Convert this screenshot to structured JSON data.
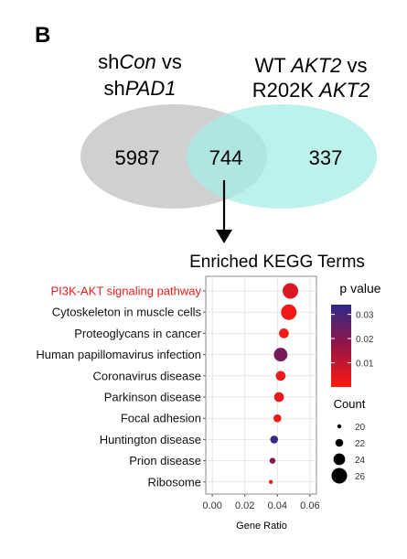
{
  "panel_label": "B",
  "venn": {
    "left_label_line1": {
      "prefix": "sh",
      "italic": "Con",
      "suffix": " vs"
    },
    "left_label_line2": {
      "prefix": "sh",
      "italic": "PAD1",
      "suffix": ""
    },
    "right_label_line1": {
      "prefix": "WT ",
      "italic": "AKT2",
      "suffix": " vs"
    },
    "right_label_line2": {
      "prefix": "R202K ",
      "italic": "AKT2",
      "suffix": ""
    },
    "left_only": "5987",
    "overlap": "744",
    "right_only": "337",
    "left_color": "#c8c8c8",
    "right_color": "#a6ece6"
  },
  "chart_data": {
    "type": "scatter",
    "title": "Enriched KEGG Terms",
    "xlabel": "Gene Ratio",
    "ylabel": "",
    "xlim": [
      -0.004,
      0.064
    ],
    "xticks": [
      "0.00",
      "0.02",
      "0.04",
      "0.06"
    ],
    "xtick_values": [
      0,
      0.02,
      0.04,
      0.06
    ],
    "grid": true,
    "highlight_color": "#e8201e",
    "terms": [
      {
        "label": "PI3K-AKT signaling pathway",
        "gene_ratio": 0.048,
        "count": 26,
        "p": 0.006,
        "highlight": true
      },
      {
        "label": "Cytoskeleton in muscle cells",
        "gene_ratio": 0.047,
        "count": 26,
        "p": 0.002,
        "highlight": false
      },
      {
        "label": "Proteoglycans in cancer",
        "gene_ratio": 0.044,
        "count": 23,
        "p": 0.002,
        "highlight": false
      },
      {
        "label": "Human papillomavirus infection",
        "gene_ratio": 0.042,
        "count": 25,
        "p": 0.022,
        "highlight": false
      },
      {
        "label": "Coronavirus disease",
        "gene_ratio": 0.042,
        "count": 23,
        "p": 0.003,
        "highlight": false
      },
      {
        "label": "Parkinson disease",
        "gene_ratio": 0.041,
        "count": 23,
        "p": 0.004,
        "highlight": false
      },
      {
        "label": "Focal adhesion",
        "gene_ratio": 0.04,
        "count": 22,
        "p": 0.002,
        "highlight": false
      },
      {
        "label": "Huntington disease",
        "gene_ratio": 0.038,
        "count": 22,
        "p": 0.032,
        "highlight": false
      },
      {
        "label": "Prion disease",
        "gene_ratio": 0.037,
        "count": 21,
        "p": 0.02,
        "highlight": false
      },
      {
        "label": "Ribosome",
        "gene_ratio": 0.036,
        "count": 20,
        "p": 0.001,
        "highlight": false
      }
    ],
    "color_legend": {
      "title": "p value",
      "ticks": [
        "0.03",
        "0.02",
        "0.01"
      ],
      "tick_values": [
        0.03,
        0.02,
        0.01
      ],
      "range": [
        0.0,
        0.034
      ],
      "low_color": "#ff1a10",
      "high_color": "#2e2a8a"
    },
    "size_legend": {
      "title": "Count",
      "entries": [
        "20",
        "22",
        "24",
        "26"
      ],
      "values": [
        20,
        22,
        24,
        26
      ]
    }
  }
}
